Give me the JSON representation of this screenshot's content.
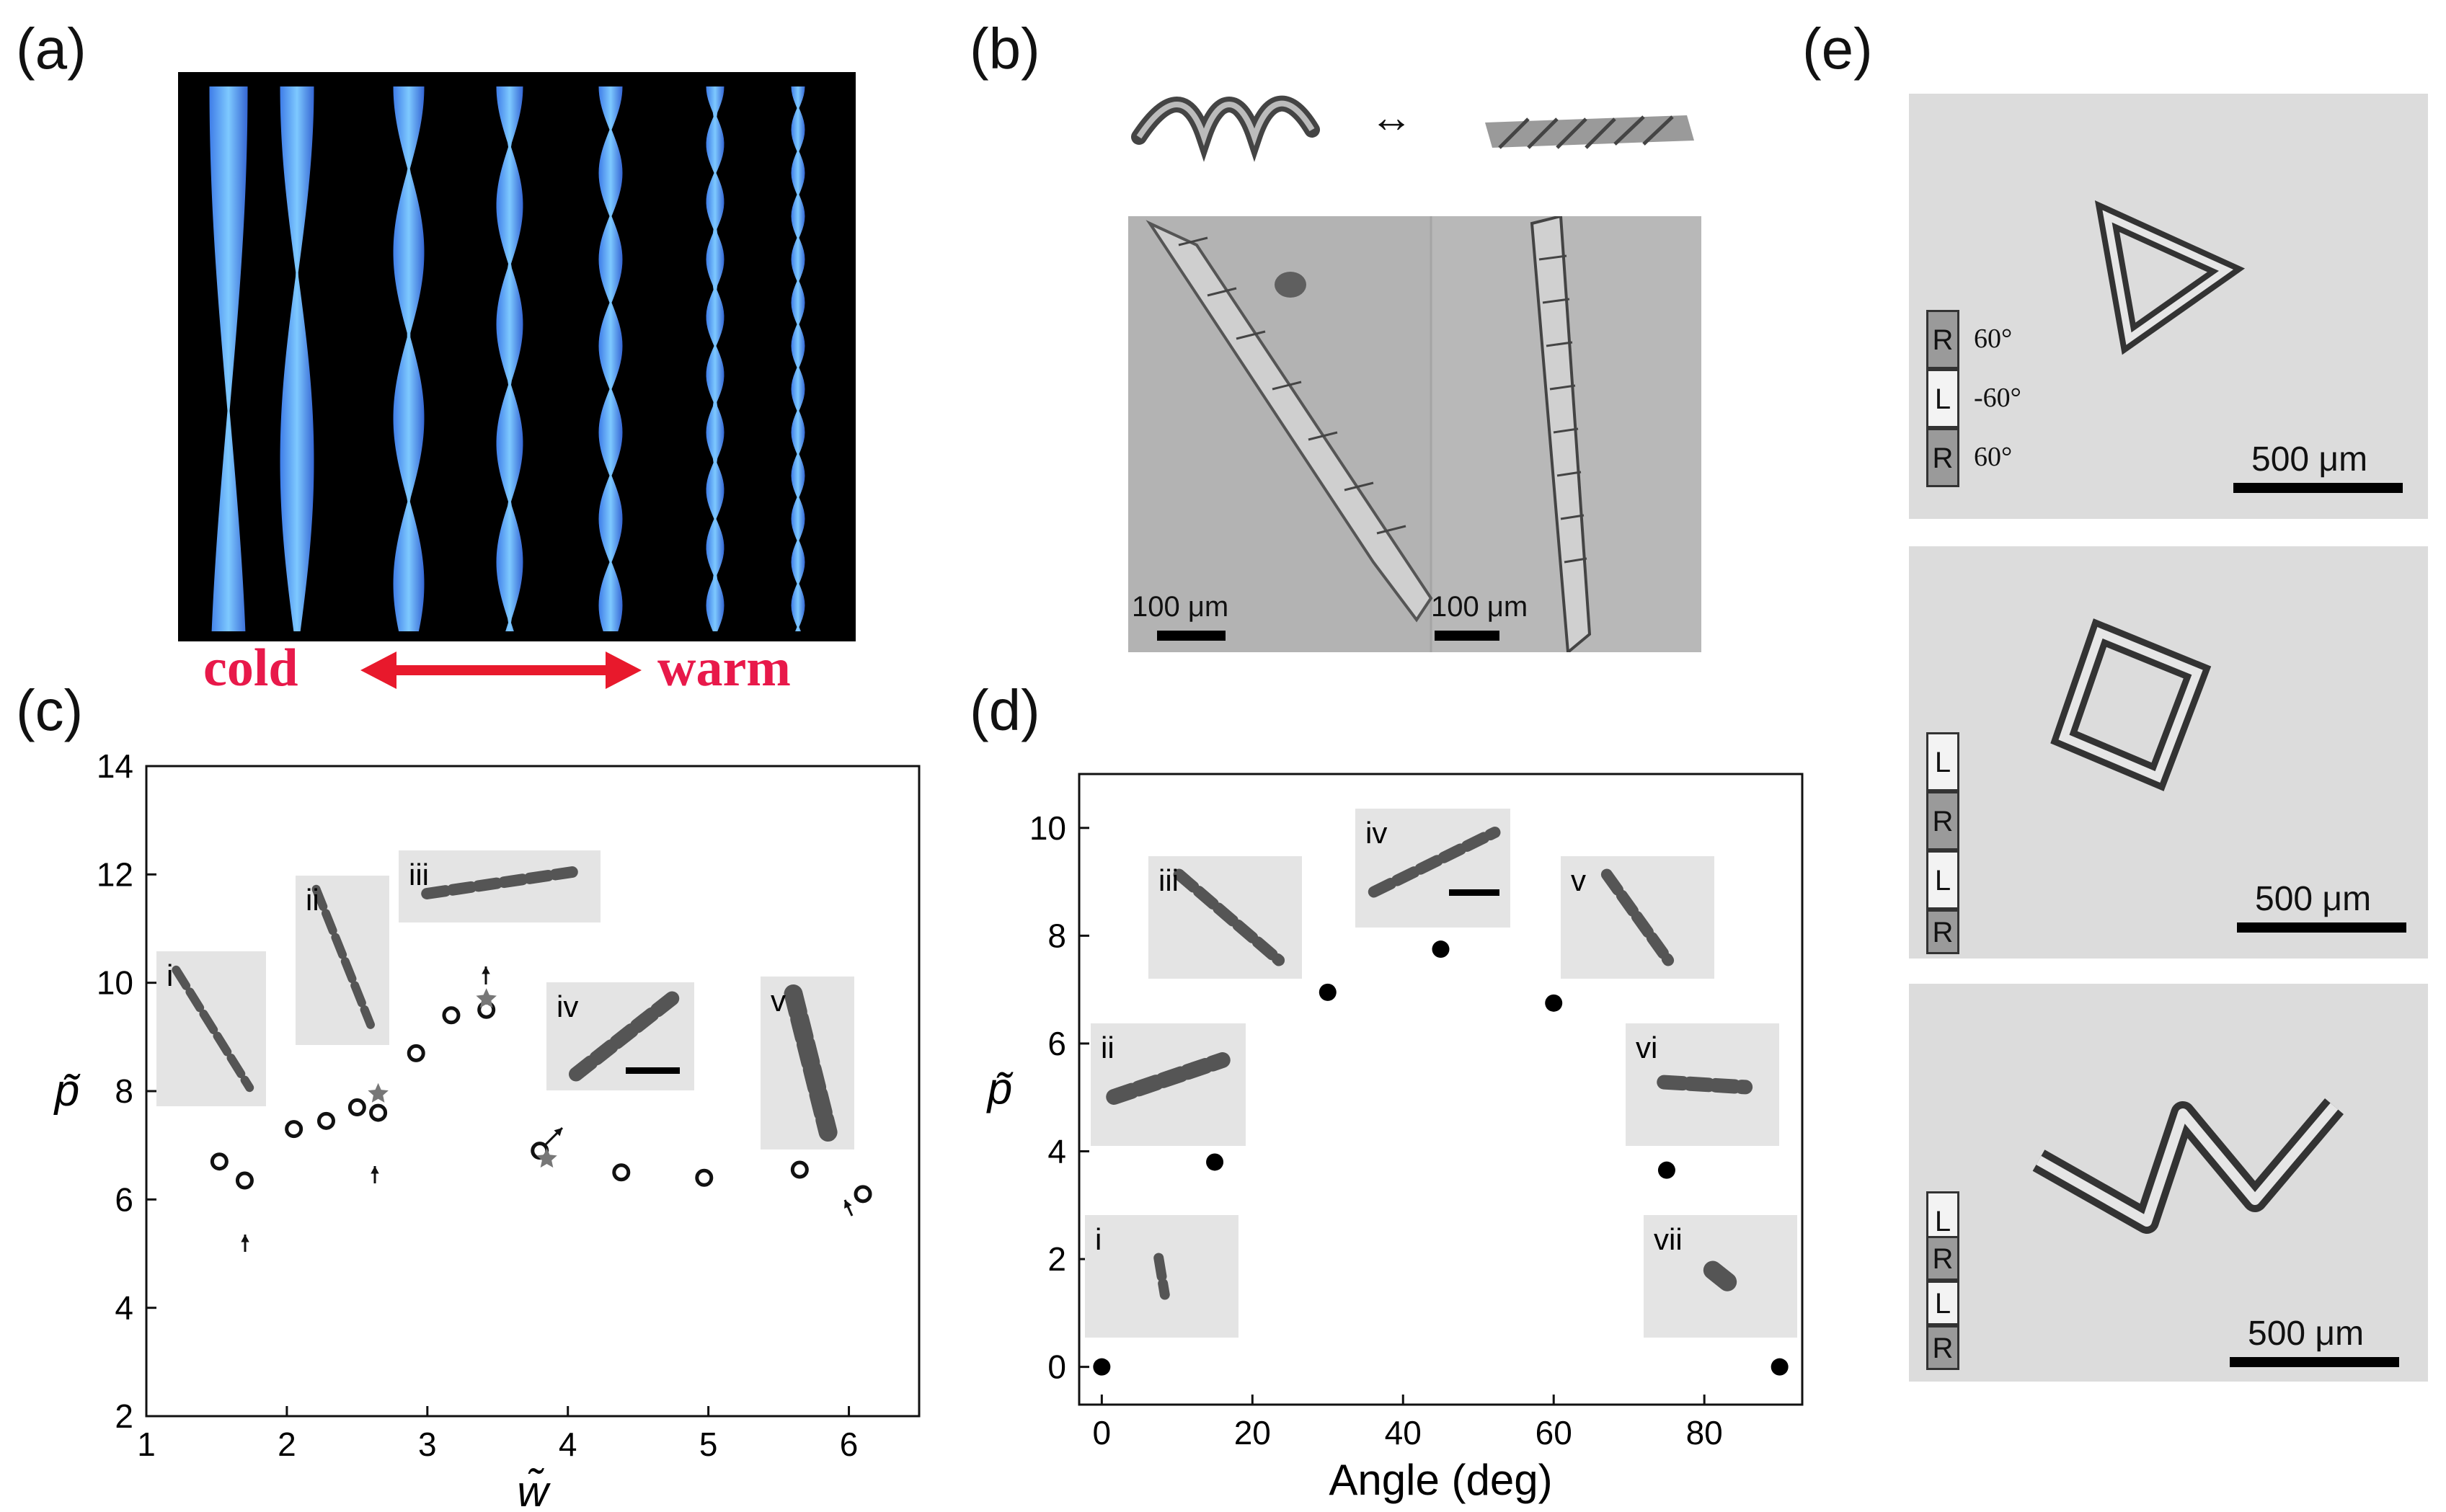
{
  "panel_labels": {
    "a": "(a)",
    "b": "(b)",
    "c": "(c)",
    "d": "(d)",
    "e": "(e)"
  },
  "panel_a": {
    "cold": "cold",
    "warm": "warm"
  },
  "panel_b": {
    "arrow": "↔",
    "scale_left": "100 μm",
    "scale_right": "100 μm"
  },
  "panel_e": {
    "scale": [
      "500 μm",
      "500 μm",
      "500 μm"
    ],
    "angles": [
      "60°",
      "-60°",
      "60°"
    ],
    "strips": [
      [
        "R",
        "L",
        "R"
      ],
      [
        "L",
        "R",
        "L",
        "R"
      ],
      [
        "L",
        "R",
        "L",
        "R"
      ]
    ]
  },
  "chart_data": [
    {
      "type": "scatter",
      "panel": "(c)",
      "xlabel": "w̃",
      "ylabel": "p̃",
      "xlim": [
        1,
        6.5
      ],
      "ylim": [
        2,
        14
      ],
      "xticks": [
        "1",
        "2",
        "3",
        "4",
        "5",
        "6"
      ],
      "yticks": [
        "2",
        "4",
        "6",
        "8",
        "10",
        "12",
        "14"
      ],
      "grid": false,
      "series": [
        {
          "marker": "open-circle",
          "points": [
            [
              1.52,
              6.7
            ],
            [
              1.7,
              6.35
            ],
            [
              2.05,
              7.3
            ],
            [
              2.28,
              7.45
            ],
            [
              2.5,
              7.7
            ],
            [
              2.65,
              7.6
            ],
            [
              2.92,
              8.7
            ],
            [
              3.17,
              9.4
            ],
            [
              3.42,
              9.5
            ],
            [
              3.8,
              6.9
            ],
            [
              4.38,
              6.5
            ],
            [
              4.97,
              6.4
            ],
            [
              5.65,
              6.55
            ],
            [
              6.1,
              6.1
            ]
          ]
        },
        {
          "marker": "star",
          "points": [
            [
              2.65,
              7.95
            ],
            [
              3.42,
              9.7
            ],
            [
              3.85,
              6.75
            ]
          ]
        }
      ],
      "insets": [
        "i",
        "ii",
        "iii",
        "iv",
        "v"
      ]
    },
    {
      "type": "scatter",
      "panel": "(d)",
      "xlabel": "Angle (deg)",
      "ylabel": "p̃",
      "xlim": [
        -3,
        93
      ],
      "ylim": [
        -0.7,
        11
      ],
      "xticks": [
        "0",
        "20",
        "40",
        "60",
        "80"
      ],
      "yticks": [
        "0",
        "2",
        "4",
        "6",
        "8",
        "10"
      ],
      "grid": false,
      "series": [
        {
          "marker": "filled-circle",
          "points": [
            [
              0,
              0
            ],
            [
              15,
              3.8
            ],
            [
              30,
              6.95
            ],
            [
              45,
              7.75
            ],
            [
              60,
              6.75
            ],
            [
              75,
              3.65
            ],
            [
              90,
              0
            ]
          ]
        }
      ],
      "insets": [
        "i",
        "ii",
        "iii",
        "iv",
        "v",
        "vi",
        "vii"
      ]
    }
  ]
}
